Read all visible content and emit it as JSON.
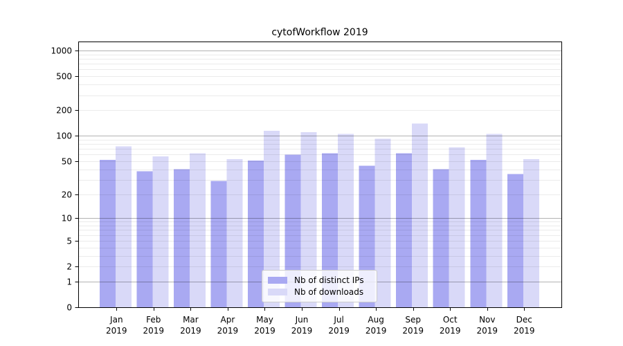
{
  "page": {
    "title": "cytofWorkflow 2019"
  },
  "chart_data": {
    "type": "bar",
    "title": "cytofWorkflow 2019",
    "scale": "log1p",
    "grid": true,
    "categories": [
      "Jan 2019",
      "Feb 2019",
      "Mar 2019",
      "Apr 2019",
      "May 2019",
      "Jun 2019",
      "Jul 2019",
      "Aug 2019",
      "Sep 2019",
      "Oct 2019",
      "Nov 2019",
      "Dec 2019"
    ],
    "series": [
      {
        "name": "Nb of distinct IPs",
        "color": "#a9a9f2",
        "values": [
          52,
          38,
          40,
          29,
          51,
          60,
          62,
          44,
          62,
          40,
          52,
          35
        ]
      },
      {
        "name": "Nb of downloads",
        "color": "#d9d9f8",
        "values": [
          75,
          57,
          62,
          53,
          115,
          110,
          105,
          92,
          140,
          73,
          105,
          53
        ]
      }
    ],
    "yticks": [
      0,
      1,
      2,
      5,
      10,
      20,
      50,
      100,
      200,
      500,
      1000
    ],
    "ylim": [
      0,
      1276
    ],
    "xlabel": "",
    "ylabel": "",
    "legend_position": "lower center",
    "colors": {
      "major_grid": "rgba(0,0,0,0.30)",
      "minor_grid": "rgba(0,0,0,0.08)",
      "axis": "#000000",
      "background": "#ffffff"
    }
  }
}
